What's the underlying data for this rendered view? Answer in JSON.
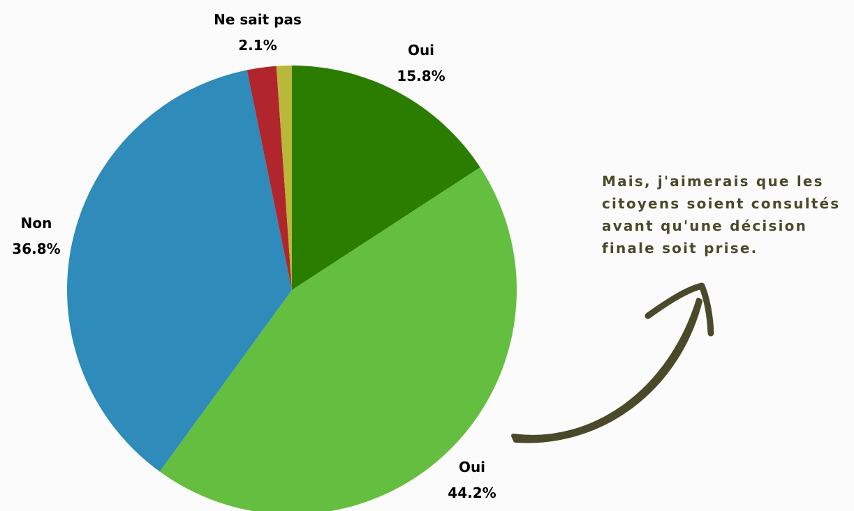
{
  "chart_data": {
    "type": "pie",
    "categories": [
      "Oui",
      "Oui",
      "Non",
      "Ne sait pas",
      null
    ],
    "values": [
      15.8,
      44.2,
      36.8,
      2.1,
      1.1
    ],
    "value_labels": [
      "15.8%",
      "44.2%",
      "36.8%",
      "2.1%",
      null
    ],
    "colors": [
      "#2a7d00",
      "#64be3f",
      "#2e8bba",
      "#b0262c",
      "#b9b83a"
    ],
    "annotation": "Mais, j'aimerais que les citoyens soient consultés avant qu'une décision finale soit prise."
  }
}
